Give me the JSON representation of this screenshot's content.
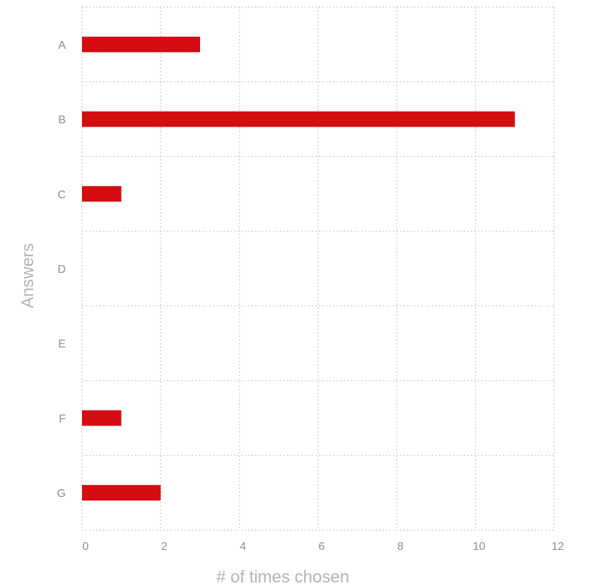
{
  "chart_data": {
    "type": "bar",
    "orientation": "horizontal",
    "categories": [
      "A",
      "B",
      "C",
      "D",
      "E",
      "F",
      "G"
    ],
    "values": [
      3,
      11,
      1,
      0,
      0,
      1,
      2
    ],
    "title": "",
    "xlabel": "# of times chosen",
    "ylabel": "Answers",
    "xlim": [
      0,
      12
    ],
    "xticks": [
      "0",
      "2",
      "4",
      "6",
      "8",
      "10",
      "12"
    ],
    "grid": true,
    "legend": "none",
    "bar_color": "#d40d12",
    "grid_color": "#cfcfcf",
    "tick_color": "#8c8c8c",
    "axis_title_color": "#b3b3b3"
  }
}
